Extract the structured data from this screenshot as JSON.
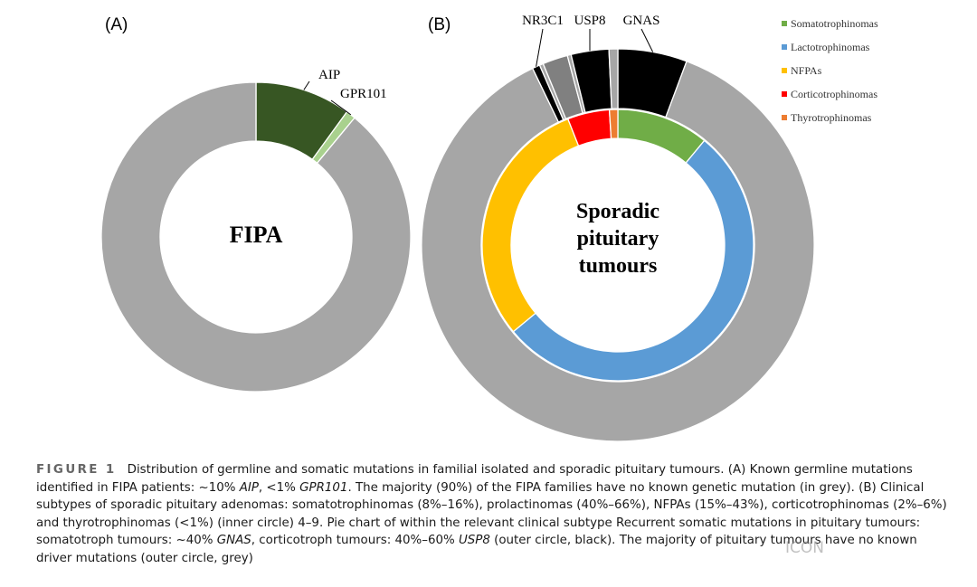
{
  "chart_data": [
    {
      "type": "pie",
      "panel": "(A)",
      "center_label": "FIPA",
      "slices": [
        {
          "label": "AIP",
          "value": 10,
          "color": "#375623"
        },
        {
          "label": "GPR101",
          "value": 1,
          "color": "#a9d18e"
        },
        {
          "label": "",
          "value": 89,
          "color": "#a6a6a6"
        }
      ]
    },
    {
      "type": "pie",
      "panel": "(B)",
      "center_label_lines": [
        "Sporadic",
        "pituitary",
        "tumours"
      ],
      "inner_ring": [
        {
          "label": "Somatotrophinomas",
          "value": 11,
          "color": "#70ad47"
        },
        {
          "label": "Lactotrophinomas",
          "value": 53,
          "color": "#5b9bd5"
        },
        {
          "label": "NFPAs",
          "value": 30,
          "color": "#ffc000"
        },
        {
          "label": "Corticotrophinomas",
          "value": 5,
          "color": "#ff0000"
        },
        {
          "label": "Thyrotrophinomas",
          "value": 1,
          "color": "#ed7d31"
        }
      ],
      "outer_ring": [
        {
          "label": "GNAS",
          "value": 5.5,
          "color": "#000000"
        },
        {
          "label": "",
          "value": 84.1,
          "color": "#a6a6a6"
        },
        {
          "label": "NR3C1",
          "value": 0.6,
          "color": "#000000"
        },
        {
          "label": "",
          "value": 0.3,
          "color": "#a6a6a6"
        },
        {
          "label": "",
          "value": 2.0,
          "color": "#808080"
        },
        {
          "label": "",
          "value": 0.3,
          "color": "#a6a6a6"
        },
        {
          "label": "USP8",
          "value": 3.0,
          "color": "#000000"
        },
        {
          "label": "",
          "value": 0.7,
          "color": "#a6a6a6"
        }
      ],
      "legend": {
        "placement": "top-right",
        "entries": [
          {
            "label": "Somatotrophinomas",
            "color": "#70ad47"
          },
          {
            "label": "Lactotrophinomas",
            "color": "#5b9bd5"
          },
          {
            "label": "NFPAs",
            "color": "#ffc000"
          },
          {
            "label": "Corticotrophinomas",
            "color": "#ff0000"
          },
          {
            "label": "Thyrotrophinomas",
            "color": "#ed7d31"
          }
        ]
      }
    }
  ],
  "caption": {
    "figure_number": "FIGURE 1",
    "parts": [
      {
        "text": "Distribution of germline and somatic mutations in familial isolated and sporadic pituitary tumours. (A) Known germline mutations identified in FIPA patients: ~10% "
      },
      {
        "text": "AIP",
        "italic": true
      },
      {
        "text": ", <1% "
      },
      {
        "text": "GPR101",
        "italic": true
      },
      {
        "text": ". The majority (90%) of the FIPA families have no known genetic mutation (in grey). (B) Clinical subtypes of sporadic pituitary adenomas: somatotrophinomas (8%–16%), prolactinomas (40%–66%), NFPAs (15%–43%), corticotrophinomas (2%–6%) and thyrotrophinomas (<1%) (inner circle) 4–9. Pie chart of within the relevant clinical subtype Recurrent somatic mutations in pituitary tumours: somatotroph tumours: ~40% "
      },
      {
        "text": "GNAS",
        "italic": true
      },
      {
        "text": ", corticotroph tumours: 40%–60% "
      },
      {
        "text": "USP8",
        "italic": true
      },
      {
        "text": " (outer circle, black). The majority of pituitary tumours have no known driver mutations (outer circle, grey)"
      }
    ]
  },
  "watermark": "ICON"
}
